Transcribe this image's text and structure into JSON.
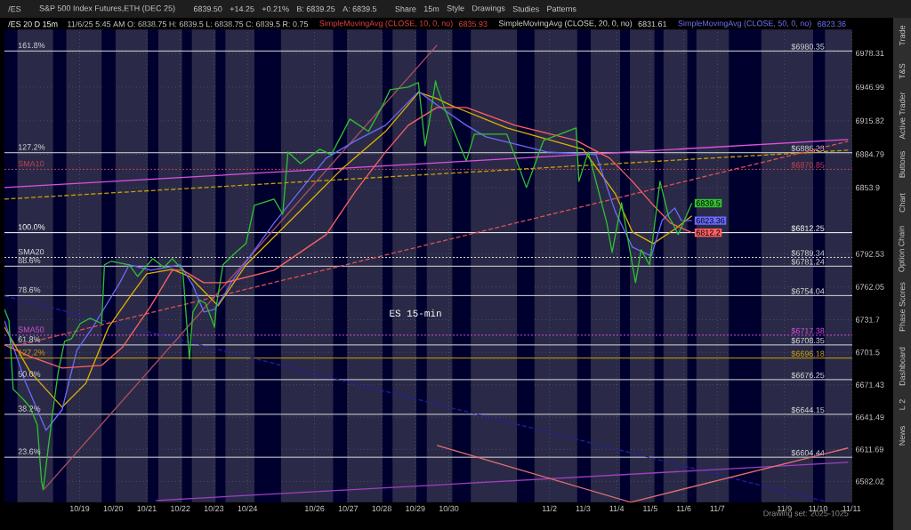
{
  "chart_data": {
    "type": "line",
    "title": "/ES 20 D 15m",
    "subtitle": "11/6/25 5:45 AM O: 6838.75 H: 6839.5 L: 6838.75 C: 6839.5 R: 0.75",
    "grid": true,
    "xlim": [
      "2025-10-16T18:15",
      "2025-11-11T00:30"
    ],
    "ylim": [
      6562.6,
      7000.4
    ],
    "xticks": [
      {
        "value": "2025-10-19",
        "label": "10/19"
      },
      {
        "value": "2025-10-20",
        "label": "10/20"
      },
      {
        "value": "2025-10-21",
        "label": "10/21"
      },
      {
        "value": "2025-10-22",
        "label": "10/22"
      },
      {
        "value": "2025-10-23",
        "label": "10/23"
      },
      {
        "value": "2025-10-24",
        "label": "10/24"
      },
      {
        "value": "2025-10-26",
        "label": "10/26"
      },
      {
        "value": "2025-10-27",
        "label": "10/27"
      },
      {
        "value": "2025-10-28",
        "label": "10/28"
      },
      {
        "value": "2025-10-29",
        "label": "10/29"
      },
      {
        "value": "2025-10-30",
        "label": "10/30"
      },
      {
        "value": "2025-11-02",
        "label": "11/2"
      },
      {
        "value": "2025-11-03",
        "label": "11/3"
      },
      {
        "value": "2025-11-04",
        "label": "11/4"
      },
      {
        "value": "2025-11-05",
        "label": "11/5"
      },
      {
        "value": "2025-11-06",
        "label": "11/6"
      },
      {
        "value": "2025-11-07",
        "label": "11/7"
      },
      {
        "value": "2025-11-09",
        "label": "11/9"
      },
      {
        "value": "2025-11-10",
        "label": "11/10"
      },
      {
        "value": "2025-11-11",
        "label": "11/11"
      }
    ],
    "yticks": [
      6582.02,
      6611.69,
      6641.49,
      6671.43,
      6701.5,
      6731.7,
      6762.05,
      6792.53,
      6853.9,
      6884.79,
      6915.82,
      6946.99,
      6978.31
    ],
    "bands": [
      {
        "axis": "x",
        "from": "2025-10-16T18:15",
        "to": "2025-10-17T03:30",
        "color": "#00002e"
      },
      {
        "axis": "x",
        "from": "2025-10-18T05:00",
        "to": "2025-10-18T14:30",
        "color": "#00002e"
      },
      {
        "axis": "x",
        "from": "2025-10-19T15:45",
        "to": "2025-10-20T01:45",
        "color": "#00002e"
      },
      {
        "axis": "x",
        "from": "2025-10-21T00:45",
        "to": "2025-10-21T08:15",
        "color": "#00002e"
      },
      {
        "axis": "x",
        "from": "2025-10-22T01:15",
        "to": "2025-10-22T08:15",
        "color": "#00002e"
      },
      {
        "axis": "x",
        "from": "2025-10-23T01:15",
        "to": "2025-10-23T08:15",
        "color": "#00002e"
      },
      {
        "axis": "x",
        "from": "2025-10-24T05:00",
        "to": "2025-10-25T00:00",
        "color": "#00002e"
      },
      {
        "axis": "x",
        "from": "2025-10-26T13:15",
        "to": "2025-10-26T23:15",
        "color": "#00002e"
      },
      {
        "axis": "x",
        "from": "2025-10-28T00:30",
        "to": "2025-10-28T07:45",
        "color": "#00002e"
      },
      {
        "axis": "x",
        "from": "2025-10-29T00:45",
        "to": "2025-10-29T08:15",
        "color": "#00002e"
      },
      {
        "axis": "x",
        "from": "2025-10-30T02:30",
        "to": "2025-10-30T15:45",
        "color": "#00002e"
      },
      {
        "axis": "x",
        "from": "2025-11-01T00:45",
        "to": "2025-11-01T13:15",
        "color": "#00002e"
      },
      {
        "axis": "x",
        "from": "2025-11-02T19:45",
        "to": "2025-11-03T05:30",
        "color": "#00002e"
      },
      {
        "axis": "x",
        "from": "2025-11-04T02:30",
        "to": "2025-11-04T09:30",
        "color": "#00002e"
      },
      {
        "axis": "x",
        "from": "2025-11-05T03:00",
        "to": "2025-11-05T09:30",
        "color": "#00002e"
      },
      {
        "axis": "x",
        "from": "2025-11-06T02:30",
        "to": "2025-11-06T09:00",
        "color": "#00002e"
      },
      {
        "axis": "x",
        "from": "2025-11-07T08:15",
        "to": "2025-11-08T07:30",
        "color": "#00002e"
      },
      {
        "axis": "x",
        "from": "2025-11-09T20:30",
        "to": "2025-11-10T05:00",
        "color": "#00002e"
      }
    ],
    "ref_lines": [
      {
        "axis": "y",
        "value": 6980.35,
        "label": "$6980.35",
        "color": "#d8d8d8"
      },
      {
        "axis": "y",
        "value": 6886.23,
        "label": "$6886.23",
        "color": "#d8d8d8"
      },
      {
        "axis": "y",
        "value": 6870.85,
        "label": "$6870.85",
        "color": "#c04050",
        "line_style": "dotted"
      },
      {
        "axis": "y",
        "value": 6812.25,
        "label": "$6812.25",
        "color": "#ffffff"
      },
      {
        "axis": "y",
        "value": 6789.34,
        "label": "$6789.34",
        "color": "#d8d8d8",
        "line_style": "dotted"
      },
      {
        "axis": "y",
        "value": 6781.24,
        "label": "$6781.24",
        "color": "#d8d8d8"
      },
      {
        "axis": "y",
        "value": 6754.04,
        "label": "$6754.04",
        "color": "#d8d8d8"
      },
      {
        "axis": "y",
        "value": 6717.38,
        "label": "$6717.38",
        "color": "#d050d0",
        "line_style": "dotted"
      },
      {
        "axis": "y",
        "value": 6708.35,
        "label": "$6708.35",
        "color": "#d8d8d8"
      },
      {
        "axis": "y",
        "value": 6696.18,
        "label": "$6696.18",
        "color": "#c8a000"
      },
      {
        "axis": "y",
        "value": 6676.25,
        "label": "$6676.25",
        "color": "#d8d8d8"
      },
      {
        "axis": "y",
        "value": 6644.15,
        "label": "$6644.15",
        "color": "#d8d8d8"
      },
      {
        "axis": "y",
        "value": 6604.44,
        "label": "$6604.44",
        "color": "#d8d8d8"
      }
    ],
    "series": [
      {
        "color": "#2020a0",
        "line_style": "dashed",
        "x": [
          "2025-10-16T18:15",
          "2025-11-10T04:45"
        ],
        "values": [
          6753.7,
          6563.6
        ]
      },
      {
        "color": "#a040c0",
        "x": [
          "2025-10-21T06:30",
          "2025-11-10T21:30"
        ],
        "values": [
          6564.4,
          6599.8
        ]
      },
      {
        "color": "#b05060",
        "x": [
          "2025-10-17T22:45",
          "2025-10-29T15:30"
        ],
        "values": [
          6575.0,
          6985.7
        ]
      },
      {
        "color": "#e07070",
        "x": [
          "2025-10-29T15:30",
          "2025-11-04T10:00",
          "2025-11-10T21:30"
        ],
        "values": [
          6615.4,
          6562.8,
          6613.0
        ]
      },
      {
        "color": "#e050e0",
        "x": [
          "2025-10-16T18:15",
          "2025-11-10T21:30"
        ],
        "values": [
          6854.0,
          6898.5
        ]
      },
      {
        "color": "#c8a000",
        "line_style": "dashed",
        "x": [
          "2025-10-16T18:15",
          "2025-11-10T21:30"
        ],
        "values": [
          6843.3,
          6888.6
        ]
      },
      {
        "color": "#e05050",
        "line_style": "dashed",
        "x": [
          "2025-10-16T21:30",
          "2025-11-10T21:30"
        ],
        "values": [
          6705.9,
          6896.8
        ]
      },
      {
        "color": "#e0b000",
        "x": [
          "2025-10-16T18:15",
          "2025-10-17T12:30",
          "2025-10-18T11:30",
          "2025-10-19T04:30",
          "2025-10-19T20:45",
          "2025-10-20T13:15",
          "2025-10-21T00:00",
          "2025-10-21T18:15",
          "2025-10-22T06:30",
          "2025-10-23T03:00",
          "2025-10-23T23:00",
          "2025-10-25T17:45",
          "2025-10-26T19:00",
          "2025-10-28T02:45",
          "2025-10-29T02:30",
          "2025-10-29T15:30",
          "2025-10-30T00:45",
          "2025-10-31T17:30",
          "2025-11-03T00:00",
          "2025-11-03T23:00",
          "2025-11-04T11:15",
          "2025-11-05T02:15",
          "2025-11-05T17:30",
          "2025-11-06T05:45"
        ],
        "values": [
          6724.9,
          6683.7,
          6650.8,
          6673.0,
          6724.9,
          6755.3,
          6774.2,
          6778.3,
          6771.8,
          6744.6,
          6782.5,
          6837.6,
          6870.5,
          6905.9,
          6942.1,
          6936.3,
          6930.5,
          6909.2,
          6889.4,
          6848.3,
          6812.9,
          6802.2,
          6815.4,
          6827.7
        ]
      },
      {
        "color": "#6a6aff",
        "x": [
          "2025-10-16T18:15",
          "2025-10-17T08:45",
          "2025-10-18T00:00",
          "2025-10-18T11:30",
          "2025-10-18T22:00",
          "2025-10-19T09:30",
          "2025-10-20T04:45",
          "2025-10-20T11:30",
          "2025-10-21T03:00",
          "2025-10-22T00:00",
          "2025-10-22T09:00",
          "2025-10-22T16:45",
          "2025-10-23T00:30",
          "2025-10-23T07:45",
          "2025-10-23T12:15",
          "2025-10-24T19:00",
          "2025-10-26T08:15",
          "2025-10-27T05:45",
          "2025-10-28T02:45",
          "2025-10-29T02:30",
          "2025-10-29T15:30",
          "2025-10-30T12:30",
          "2025-10-31T02:30",
          "2025-11-01T22:15",
          "2025-11-03T09:15",
          "2025-11-03T23:00",
          "2025-11-04T11:15",
          "2025-11-05T00:45",
          "2025-11-05T08:30",
          "2025-11-05T17:30",
          "2025-11-05T22:15",
          "2025-11-06T05:45"
        ],
        "values": [
          6730.6,
          6675.5,
          6629.4,
          6648.4,
          6703.5,
          6724.9,
          6766.0,
          6782.5,
          6777.5,
          6782.5,
          6763.5,
          6738.9,
          6741.3,
          6755.3,
          6766.0,
          6821.1,
          6881.2,
          6897.6,
          6911.6,
          6942.9,
          6930.5,
          6911.6,
          6900.9,
          6886.9,
          6884.5,
          6831.8,
          6798.9,
          6790.7,
          6823.6,
          6835.1,
          6823.6,
          6823.36
        ],
        "value_labels": [
          null,
          null,
          null,
          null,
          null,
          null,
          null,
          null,
          null,
          null,
          null,
          null,
          null,
          null,
          null,
          null,
          null,
          null,
          null,
          null,
          null,
          null,
          null,
          null,
          null,
          null,
          null,
          null,
          null,
          null,
          null,
          "6823.36"
        ]
      },
      {
        "color": "#ff6060",
        "x": [
          "2025-10-16T18:15",
          "2025-10-17T12:30",
          "2025-10-18T11:30",
          "2025-10-19T15:45",
          "2025-10-20T06:30",
          "2025-10-21T03:00",
          "2025-10-21T18:15",
          "2025-10-22T01:45",
          "2025-10-22T16:45",
          "2025-10-23T07:45",
          "2025-10-24T19:00",
          "2025-10-26T08:15",
          "2025-10-27T05:45",
          "2025-10-28T02:45",
          "2025-10-28T19:00",
          "2025-10-29T15:30",
          "2025-10-30T12:30",
          "2025-10-31T23:15",
          "2025-11-02T19:00",
          "2025-11-03T19:00",
          "2025-11-04T11:15",
          "2025-11-05T02:15",
          "2025-11-05T14:30",
          "2025-11-06T05:45"
        ],
        "values": [
          6708.4,
          6697.7,
          6687.0,
          6689.5,
          6705.9,
          6744.6,
          6777.5,
          6777.5,
          6766.0,
          6766.0,
          6777.5,
          6810.4,
          6851.6,
          6886.9,
          6911.6,
          6928.1,
          6928.1,
          6911.6,
          6897.6,
          6881.2,
          6859.8,
          6837.6,
          6821.1,
          6812.2
        ],
        "value_labels": [
          null,
          null,
          null,
          null,
          null,
          null,
          null,
          null,
          null,
          null,
          null,
          null,
          null,
          null,
          null,
          null,
          null,
          null,
          null,
          null,
          null,
          null,
          null,
          "6812.2"
        ]
      },
      {
        "color": "#30c030",
        "x": [
          "2025-10-16T18:15",
          "2025-10-16T21:30",
          "2025-10-17T00:30",
          "2025-10-17T04:30",
          "2025-10-17T08:45",
          "2025-10-17T12:30",
          "2025-10-17T17:45",
          "2025-10-17T20:45",
          "2025-10-17T22:00",
          "2025-10-18T00:00",
          "2025-10-18T02:00",
          "2025-10-18T05:00",
          "2025-10-18T07:00",
          "2025-10-18T08:45",
          "2025-10-18T13:15",
          "2025-10-18T18:15",
          "2025-10-19T00:30",
          "2025-10-19T07:30",
          "2025-10-19T15:45",
          "2025-10-19T17:45",
          "2025-10-19T22:45",
          "2025-10-20T11:30",
          "2025-10-20T17:30",
          "2025-10-21T04:15",
          "2025-10-21T12:15",
          "2025-10-21T18:15",
          "2025-10-22T01:45",
          "2025-10-22T06:30",
          "2025-10-22T09:00",
          "2025-10-22T13:45",
          "2025-10-22T18:00",
          "2025-10-23T00:30",
          "2025-10-23T01:45",
          "2025-10-23T06:30",
          "2025-10-23T15:45",
          "2025-10-23T23:00",
          "2025-10-24T05:00",
          "2025-10-24T19:00",
          "2025-10-25T01:15",
          "2025-10-25T05:00",
          "2025-10-25T14:00",
          "2025-10-26T03:45",
          "2025-10-26T12:00",
          "2025-10-27T01:15",
          "2025-10-27T14:30",
          "2025-10-28T00:00",
          "2025-10-28T06:00",
          "2025-10-28T19:00",
          "2025-10-29T02:15",
          "2025-10-29T07:00",
          "2025-10-29T10:00",
          "2025-10-29T14:30",
          "2025-10-29T15:30",
          "2025-10-29T21:30",
          "2025-10-30T12:30",
          "2025-10-30T18:15",
          "2025-10-31T17:30",
          "2025-11-01T07:30",
          "2025-11-01T19:45",
          "2025-11-02T19:00",
          "2025-11-02T21:00",
          "2025-11-03T03:45",
          "2025-11-03T17:00",
          "2025-11-03T20:45",
          "2025-11-04T03:30",
          "2025-11-04T08:15",
          "2025-11-04T13:30",
          "2025-11-04T17:30",
          "2025-11-04T23:30",
          "2025-11-05T07:00",
          "2025-11-05T13:15",
          "2025-11-05T16:00",
          "2025-11-05T20:00",
          "2025-11-06T05:45"
        ],
        "values": [
          6741.3,
          6730.6,
          6667.3,
          6662.3,
          6656.6,
          6650.8,
          6634.4,
          6582.5,
          6574.3,
          6596.5,
          6617.9,
          6648.4,
          6667.3,
          6683.7,
          6711.7,
          6714.2,
          6728.2,
          6733.1,
          6728.2,
          6782.5,
          6785.8,
          6782.5,
          6771.8,
          6788.2,
          6780.0,
          6788.2,
          6777.5,
          6695.3,
          6738.9,
          6749.6,
          6747.1,
          6724.9,
          6744.6,
          6782.5,
          6794.0,
          6802.2,
          6837.6,
          6843.3,
          6829.4,
          6886.9,
          6876.2,
          6889.4,
          6884.5,
          6917.4,
          6905.9,
          6928.1,
          6944.5,
          6947.0,
          6951.1,
          6892.7,
          6914.1,
          6952.8,
          6947.0,
          6925.6,
          6878.7,
          6903.4,
          6903.4,
          6854.0,
          6897.6,
          6909.2,
          6859.8,
          6886.9,
          6821.1,
          6794.0,
          6840.0,
          6804.7,
          6766.0,
          6796.4,
          6782.5,
          6859.8,
          6826.9,
          6821.1,
          6810.5,
          6839.5
        ],
        "value_labels": [
          null,
          null,
          null,
          null,
          null,
          null,
          null,
          null,
          null,
          null,
          null,
          null,
          null,
          null,
          null,
          null,
          null,
          null,
          null,
          null,
          null,
          null,
          null,
          null,
          null,
          null,
          null,
          null,
          null,
          null,
          null,
          null,
          null,
          null,
          null,
          null,
          null,
          null,
          null,
          null,
          null,
          null,
          null,
          null,
          null,
          null,
          null,
          null,
          null,
          null,
          null,
          null,
          null,
          null,
          null,
          null,
          null,
          null,
          null,
          null,
          null,
          null,
          null,
          null,
          null,
          null,
          null,
          null,
          null,
          null,
          null,
          null,
          null,
          "6839.5"
        ]
      }
    ],
    "annotations": [
      "/ES",
      "S&P 500 Index Futures,ETH (DEC 25)",
      "6839.50",
      "+14.25",
      "+0.21%",
      "B: 6839.25",
      "A: 6839.5",
      "Share",
      "15m",
      "Style",
      "Drawings",
      "Studies",
      "Patterns",
      "SimpleMovingAvg (CLOSE, 10, 0, no)",
      "6835.93",
      "SimpleMovingAvg (CLOSE, 20, 0, no)",
      "6831.61",
      "SimpleMovingAvg (CLOSE, 50, 0, no)",
      "6823.36",
      "ES 15-min",
      "Trade",
      "T&S",
      "Active Trader",
      "Buttons",
      "Chart",
      "Option Chain",
      "Phase Scores",
      "Dashboard",
      "L 2",
      "News",
      "Drawing set: 2025-1025",
      {
        "text": "161.8%",
        "x": "2025-10-16T18:15",
        "y": 6980.35
      },
      {
        "text": "127.2%",
        "x": "2025-10-16T18:15",
        "y": 6886.23
      },
      {
        "text": "SMA10",
        "x": "2025-10-16T18:15",
        "y": 6870.85
      },
      {
        "text": "100.0%",
        "x": "2025-10-16T18:15",
        "y": 6812.25
      },
      {
        "text": "SMA20",
        "x": "2025-10-16T18:15",
        "y": 6789.34
      },
      {
        "text": "88.6%",
        "x": "2025-10-16T18:15",
        "y": 6781.24
      },
      {
        "text": "78.6%",
        "x": "2025-10-16T18:15",
        "y": 6754.04
      },
      {
        "text": "SMA50",
        "x": "2025-10-16T18:15",
        "y": 6717.38
      },
      {
        "text": "61.8%",
        "x": "2025-10-16T18:15",
        "y": 6708.35
      },
      {
        "text": "127.2%",
        "x": "2025-10-16T18:15",
        "y": 6696.18
      },
      {
        "text": "50.0%",
        "x": "2025-10-16T18:15",
        "y": 6676.25
      },
      {
        "text": "38.2%",
        "x": "2025-10-16T18:15",
        "y": 6644.15
      },
      {
        "text": "23.6%",
        "x": "2025-10-16T18:15",
        "y": 6604.44
      }
    ]
  }
}
